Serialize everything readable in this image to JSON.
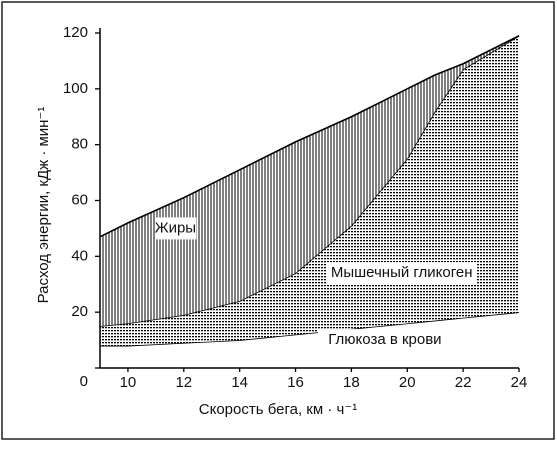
{
  "chart_data": {
    "type": "stacked-area",
    "x_label": "Скорость бега, км · ч⁻¹",
    "y_label": "Расход энергии, кДж · мин⁻¹",
    "x": [
      9,
      10,
      12,
      14,
      16,
      18,
      20,
      21,
      22,
      24
    ],
    "series": [
      {
        "name": "Глюкоза в крови",
        "color": "#000000",
        "pattern": "none",
        "values": [
          8,
          8,
          9,
          10,
          12,
          14,
          16,
          17,
          18,
          20
        ]
      },
      {
        "name": "Мышечный гликоген",
        "color": "#000000",
        "pattern": "dots",
        "values": [
          7,
          8,
          10,
          14,
          22,
          37,
          59,
          75,
          89,
          99
        ]
      },
      {
        "name": "Жиры",
        "color": "#000000",
        "pattern": "vertical-lines",
        "values": [
          32,
          36,
          42,
          47,
          47,
          39,
          25,
          13,
          2,
          0
        ]
      }
    ],
    "xlim": [
      9,
      24
    ],
    "xticks": [
      10,
      12,
      14,
      16,
      18,
      20,
      22,
      24
    ],
    "ylim": [
      0,
      120
    ],
    "yticks": [
      0,
      20,
      40,
      60,
      80,
      100,
      120
    ]
  }
}
